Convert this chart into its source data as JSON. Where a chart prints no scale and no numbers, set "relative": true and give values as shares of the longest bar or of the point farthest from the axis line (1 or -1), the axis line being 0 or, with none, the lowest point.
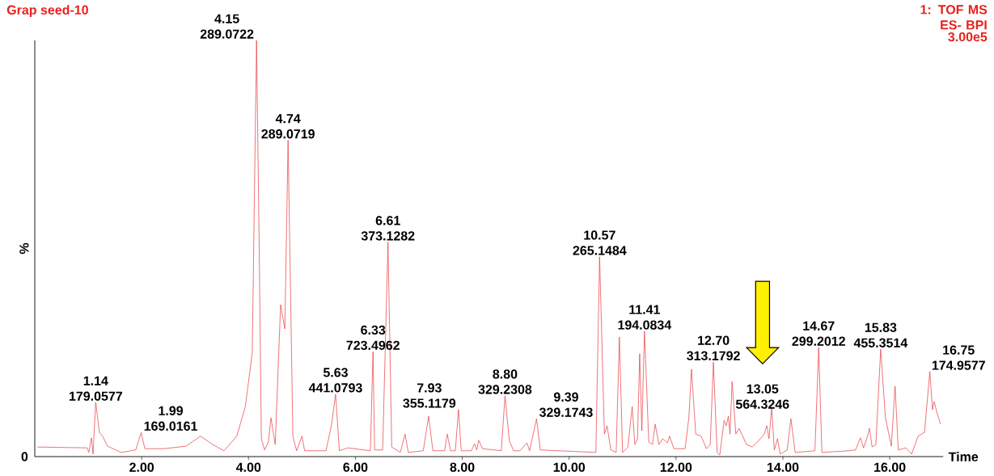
{
  "chart_data": {
    "type": "line",
    "relative": true,
    "title": "Grap seed-10",
    "subtitle": "1: TOF MS ES- BPI",
    "xlabel": "Time",
    "ylabel": "%",
    "xlim": [
      0,
      17.0
    ],
    "xticks": [
      {
        "value": 2,
        "label": "2.00"
      },
      {
        "value": 4,
        "label": "4.00"
      },
      {
        "value": 6,
        "label": "6.00"
      },
      {
        "value": 8,
        "label": "8.00"
      },
      {
        "value": 10,
        "label": "10.00"
      },
      {
        "value": 12,
        "label": "12.00"
      },
      {
        "value": 14,
        "label": "14.00"
      },
      {
        "value": 16,
        "label": "16.00"
      }
    ],
    "color": "#e8383d",
    "x": [
      0.05,
      0.98,
      1.01,
      1.06,
      1.09,
      1.14,
      1.21,
      1.27,
      1.36,
      1.62,
      1.89,
      1.99,
      2.06,
      2.42,
      2.83,
      3.1,
      3.33,
      3.54,
      3.78,
      3.94,
      4.07,
      4.15,
      4.2,
      4.24,
      4.3,
      4.37,
      4.42,
      4.5,
      4.6,
      4.68,
      4.74,
      4.83,
      4.9,
      5.0,
      5.05,
      5.45,
      5.55,
      5.63,
      5.7,
      5.86,
      6.28,
      6.33,
      6.36,
      6.51,
      6.61,
      6.68,
      6.84,
      6.93,
      6.99,
      7.27,
      7.37,
      7.45,
      7.67,
      7.72,
      7.78,
      7.87,
      7.93,
      7.98,
      8.17,
      8.23,
      8.27,
      8.31,
      8.38,
      8.73,
      8.8,
      8.88,
      8.96,
      9.08,
      9.21,
      9.26,
      9.39,
      9.46,
      10.5,
      10.57,
      10.66,
      10.71,
      10.78,
      10.88,
      10.94,
      11.0,
      11.1,
      11.18,
      11.23,
      11.28,
      11.32,
      11.36,
      11.41,
      11.49,
      11.56,
      11.61,
      11.68,
      11.75,
      11.84,
      11.88,
      11.96,
      12.17,
      12.24,
      12.29,
      12.37,
      12.47,
      12.57,
      12.64,
      12.7,
      12.77,
      12.82,
      12.9,
      12.94,
      12.98,
      13.01,
      13.05,
      13.12,
      13.18,
      13.32,
      13.43,
      13.58,
      13.65,
      13.7,
      13.74,
      13.79,
      13.84,
      13.9,
      13.95,
      14.08,
      14.15,
      14.23,
      14.6,
      14.67,
      14.73,
      15.24,
      15.36,
      15.45,
      15.51,
      15.57,
      15.62,
      15.67,
      15.74,
      15.83,
      15.92,
      16.03,
      16.1,
      16.16,
      16.3,
      16.41,
      16.53,
      16.65,
      16.75,
      16.8,
      16.83,
      16.89,
      16.95
    ],
    "values": [
      0.023,
      0.021,
      0.01,
      0.045,
      0.006,
      0.13,
      0.058,
      0.049,
      0.025,
      0.01,
      0.016,
      0.058,
      0.019,
      0.019,
      0.025,
      0.049,
      0.029,
      0.014,
      0.049,
      0.12,
      0.25,
      1.0,
      0.5,
      0.043,
      0.016,
      0.035,
      0.093,
      0.029,
      0.365,
      0.307,
      0.76,
      0.049,
      0.014,
      0.049,
      0.014,
      0.014,
      0.074,
      0.15,
      0.014,
      0.021,
      0.014,
      0.252,
      0.016,
      0.016,
      0.515,
      0.023,
      0.01,
      0.054,
      0.01,
      0.014,
      0.097,
      0.014,
      0.014,
      0.054,
      0.014,
      0.014,
      0.113,
      0.014,
      0.014,
      0.031,
      0.016,
      0.039,
      0.019,
      0.014,
      0.146,
      0.039,
      0.014,
      0.014,
      0.033,
      0.014,
      0.091,
      0.016,
      0.01,
      0.48,
      0.054,
      0.074,
      0.016,
      0.01,
      0.287,
      0.01,
      0.023,
      0.12,
      0.029,
      0.043,
      0.247,
      0.062,
      0.301,
      0.035,
      0.029,
      0.078,
      0.029,
      0.043,
      0.033,
      0.049,
      0.019,
      0.019,
      0.093,
      0.21,
      0.054,
      0.049,
      0.019,
      0.029,
      0.227,
      0.01,
      0.004,
      0.087,
      0.074,
      0.097,
      0.054,
      0.18,
      0.054,
      0.068,
      0.029,
      0.023,
      0.043,
      0.054,
      0.074,
      0.043,
      0.117,
      0.016,
      0.043,
      0.006,
      0.016,
      0.091,
      0.01,
      0.014,
      0.262,
      0.01,
      0.014,
      0.016,
      0.045,
      0.021,
      0.043,
      0.068,
      0.023,
      0.029,
      0.258,
      0.093,
      0.025,
      0.169,
      0.016,
      0.021,
      0.006,
      0.049,
      0.058,
      0.204,
      0.113,
      0.132,
      0.103,
      0.078
    ],
    "annotations": [
      {
        "text": "1.14",
        "x": 1.14,
        "y": 0.13
      },
      {
        "text": "179.0577",
        "x": 1.14,
        "y": 0.13
      },
      {
        "text": "1.99",
        "x": 1.99,
        "y": 0.058
      },
      {
        "text": "169.0161",
        "x": 1.99,
        "y": 0.058
      },
      {
        "text": "4.15",
        "x": 4.15,
        "y": 1.0
      },
      {
        "text": "289.0722",
        "x": 4.15,
        "y": 1.0
      },
      {
        "text": "4.74",
        "x": 4.74,
        "y": 0.76
      },
      {
        "text": "289.0719",
        "x": 4.74,
        "y": 0.76
      },
      {
        "text": "5.63",
        "x": 5.63,
        "y": 0.15
      },
      {
        "text": "441.0793",
        "x": 5.63,
        "y": 0.15
      },
      {
        "text": "6.33",
        "x": 6.33,
        "y": 0.252
      },
      {
        "text": "723.4962",
        "x": 6.33,
        "y": 0.252
      },
      {
        "text": "6.61",
        "x": 6.61,
        "y": 0.515
      },
      {
        "text": "373.1282",
        "x": 6.61,
        "y": 0.515
      },
      {
        "text": "7.93",
        "x": 7.93,
        "y": 0.113
      },
      {
        "text": "355.1179",
        "x": 7.93,
        "y": 0.113
      },
      {
        "text": "8.80",
        "x": 8.8,
        "y": 0.146
      },
      {
        "text": "329.2308",
        "x": 8.8,
        "y": 0.146
      },
      {
        "text": "9.39",
        "x": 9.39,
        "y": 0.091
      },
      {
        "text": "329.1743",
        "x": 9.39,
        "y": 0.091
      },
      {
        "text": "10.57",
        "x": 10.57,
        "y": 0.48
      },
      {
        "text": "265.1484",
        "x": 10.57,
        "y": 0.48
      },
      {
        "text": "11.41",
        "x": 11.41,
        "y": 0.301
      },
      {
        "text": "194.0834",
        "x": 11.41,
        "y": 0.301
      },
      {
        "text": "12.70",
        "x": 12.7,
        "y": 0.227
      },
      {
        "text": "313.1792",
        "x": 12.7,
        "y": 0.227
      },
      {
        "text": "13.05",
        "x": 13.05,
        "y": 0.18
      },
      {
        "text": "564.3246",
        "x": 13.05,
        "y": 0.18
      },
      {
        "text": "14.67",
        "x": 14.67,
        "y": 0.262
      },
      {
        "text": "299.2012",
        "x": 14.67,
        "y": 0.262
      },
      {
        "text": "15.83",
        "x": 15.83,
        "y": 0.258
      },
      {
        "text": "455.3514",
        "x": 15.83,
        "y": 0.258
      },
      {
        "text": "16.75",
        "x": 16.75,
        "y": 0.204
      },
      {
        "text": "174.9577",
        "x": 16.75,
        "y": 0.204
      },
      "3.00e5",
      "0"
    ]
  }
}
